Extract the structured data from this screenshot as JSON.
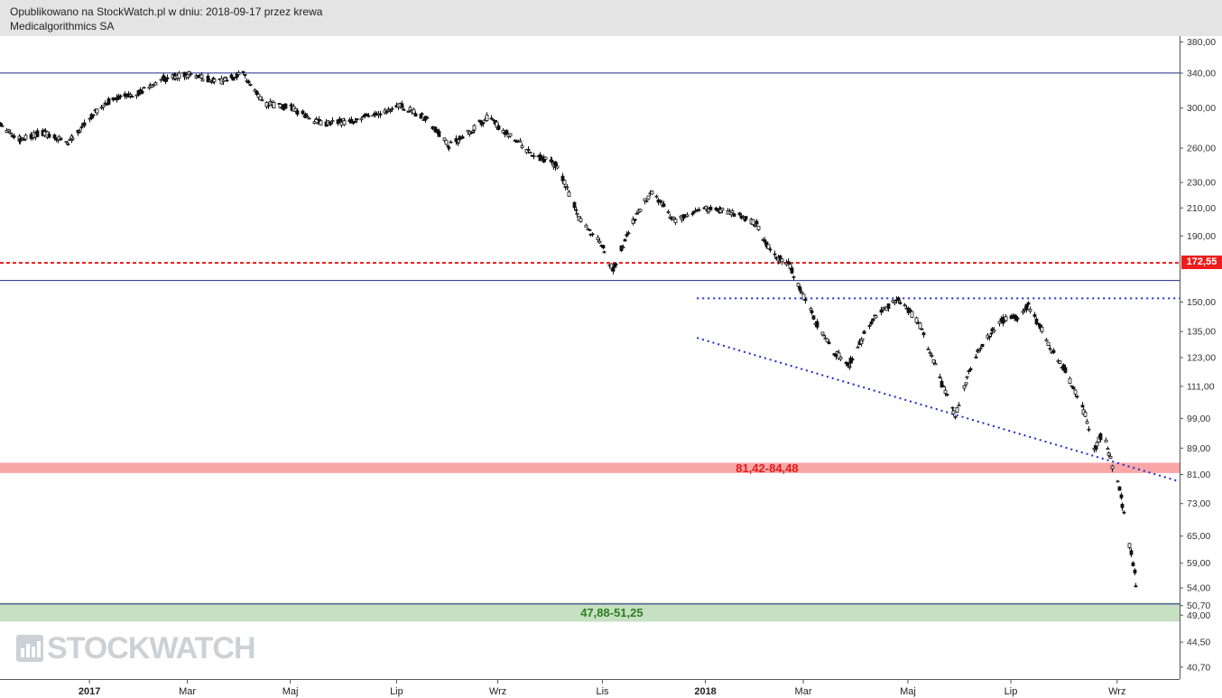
{
  "header": {
    "line1": "Opublikowano na StockWatch.pl w dniu: 2018-09-17 przez krewa",
    "line2": "Medicalgorithmics SA"
  },
  "logo_text": "STOCKWATCH",
  "price_tag": "172,55",
  "chart_data": {
    "type": "candlestick",
    "title": "Medicalgorithmics SA",
    "y_scale": "log",
    "ylim": [
      39,
      388
    ],
    "y_ticks": [
      {
        "v": 380,
        "label": "380,00"
      },
      {
        "v": 340,
        "label": "340,00"
      },
      {
        "v": 300,
        "label": "300,00"
      },
      {
        "v": 260,
        "label": "260,00"
      },
      {
        "v": 230,
        "label": "230,00"
      },
      {
        "v": 210,
        "label": "210,00"
      },
      {
        "v": 190,
        "label": "190,00"
      },
      {
        "v": 150,
        "label": "150,00"
      },
      {
        "v": 135,
        "label": "135,00"
      },
      {
        "v": 123,
        "label": "123,00"
      },
      {
        "v": 111,
        "label": "111,00"
      },
      {
        "v": 99,
        "label": "99,00"
      },
      {
        "v": 89,
        "label": "89,00"
      },
      {
        "v": 81,
        "label": "81,00"
      },
      {
        "v": 73,
        "label": "73,00"
      },
      {
        "v": 65,
        "label": "65,00"
      },
      {
        "v": 59,
        "label": "59,00"
      },
      {
        "v": 54,
        "label": "54,00"
      },
      {
        "v": 50.7,
        "label": "50,70"
      },
      {
        "v": 49,
        "label": "49,00"
      },
      {
        "v": 44.5,
        "label": "44,50"
      },
      {
        "v": 40.7,
        "label": "40,70"
      }
    ],
    "x_ticks": [
      {
        "date": "2017-01-02",
        "label": "2017",
        "bold": true
      },
      {
        "date": "2017-03-01",
        "label": "Mar"
      },
      {
        "date": "2017-05-01",
        "label": "Maj"
      },
      {
        "date": "2017-07-03",
        "label": "Lip"
      },
      {
        "date": "2017-09-01",
        "label": "Wrz"
      },
      {
        "date": "2017-11-02",
        "label": "Lis"
      },
      {
        "date": "2018-01-02",
        "label": "2018",
        "bold": true
      },
      {
        "date": "2018-03-01",
        "label": "Mar"
      },
      {
        "date": "2018-05-02",
        "label": "Maj"
      },
      {
        "date": "2018-07-02",
        "label": "Lip"
      },
      {
        "date": "2018-09-03",
        "label": "Wrz"
      }
    ],
    "x_range": [
      "2016-11-10",
      "2018-10-10"
    ],
    "price_path": [
      [
        "2016-11-10",
        285
      ],
      [
        "2016-11-20",
        268
      ],
      [
        "2016-12-05",
        275
      ],
      [
        "2016-12-20",
        265
      ],
      [
        "2017-01-02",
        290
      ],
      [
        "2017-01-15",
        310
      ],
      [
        "2017-02-01",
        318
      ],
      [
        "2017-02-15",
        333
      ],
      [
        "2017-03-01",
        338
      ],
      [
        "2017-03-20",
        330
      ],
      [
        "2017-04-03",
        338
      ],
      [
        "2017-04-15",
        305
      ],
      [
        "2017-05-01",
        300
      ],
      [
        "2017-05-20",
        283
      ],
      [
        "2017-06-10",
        288
      ],
      [
        "2017-06-25",
        297
      ],
      [
        "2017-07-05",
        303
      ],
      [
        "2017-07-20",
        289
      ],
      [
        "2017-08-03",
        262
      ],
      [
        "2017-08-15",
        275
      ],
      [
        "2017-08-25",
        290
      ],
      [
        "2017-09-10",
        270
      ],
      [
        "2017-09-20",
        255
      ],
      [
        "2017-10-05",
        245
      ],
      [
        "2017-10-20",
        200
      ],
      [
        "2017-11-01",
        185
      ],
      [
        "2017-11-08",
        168
      ],
      [
        "2017-11-20",
        200
      ],
      [
        "2017-12-01",
        223
      ],
      [
        "2017-12-15",
        200
      ],
      [
        "2018-01-02",
        210
      ],
      [
        "2018-01-20",
        205
      ],
      [
        "2018-02-01",
        198
      ],
      [
        "2018-02-10",
        178
      ],
      [
        "2018-02-20",
        172
      ],
      [
        "2018-02-28",
        155
      ],
      [
        "2018-03-08",
        140
      ],
      [
        "2018-03-18",
        126
      ],
      [
        "2018-03-28",
        120
      ],
      [
        "2018-04-10",
        140
      ],
      [
        "2018-04-25",
        152
      ],
      [
        "2018-05-08",
        140
      ],
      [
        "2018-05-20",
        115
      ],
      [
        "2018-05-30",
        100
      ],
      [
        "2018-06-10",
        123
      ],
      [
        "2018-06-25",
        140
      ],
      [
        "2018-07-05",
        142
      ],
      [
        "2018-07-12",
        148
      ],
      [
        "2018-07-25",
        128
      ],
      [
        "2018-08-05",
        115
      ],
      [
        "2018-08-15",
        100
      ],
      [
        "2018-08-20",
        88
      ],
      [
        "2018-08-25",
        94
      ],
      [
        "2018-09-01",
        82
      ],
      [
        "2018-09-05",
        75
      ],
      [
        "2018-09-09",
        65
      ],
      [
        "2018-09-13",
        57
      ],
      [
        "2018-09-17",
        48
      ]
    ],
    "annotations": {
      "hlines": [
        {
          "value": 340,
          "color": "#1e2a87",
          "style": "solid"
        },
        {
          "value": 162,
          "color": "#1e2a87",
          "style": "solid"
        },
        {
          "value": 51,
          "color": "#1e2a87",
          "style": "solid"
        },
        {
          "value": 172.55,
          "color": "#e51a1a",
          "style": "dashed"
        }
      ],
      "dotted_lines": [
        {
          "from": [
            "2017-12-28",
            152
          ],
          "to": [
            "2018-10-10",
            152
          ],
          "color": "#1a2acc"
        },
        {
          "from": [
            "2017-12-28",
            132
          ],
          "to": [
            "2018-10-10",
            79
          ],
          "color": "#1a2acc"
        }
      ],
      "zones": [
        {
          "low": 81.42,
          "high": 84.48,
          "color": "#f8a6a6",
          "label": "81,42-84,48",
          "label_color": "#e51a1a",
          "label_x": "2018-01-20"
        },
        {
          "low": 47.88,
          "high": 51.25,
          "color": "#c6e0c2",
          "label": "47,88-51,25",
          "label_color": "#2f7d22",
          "label_x": "2017-10-20"
        }
      ]
    }
  }
}
